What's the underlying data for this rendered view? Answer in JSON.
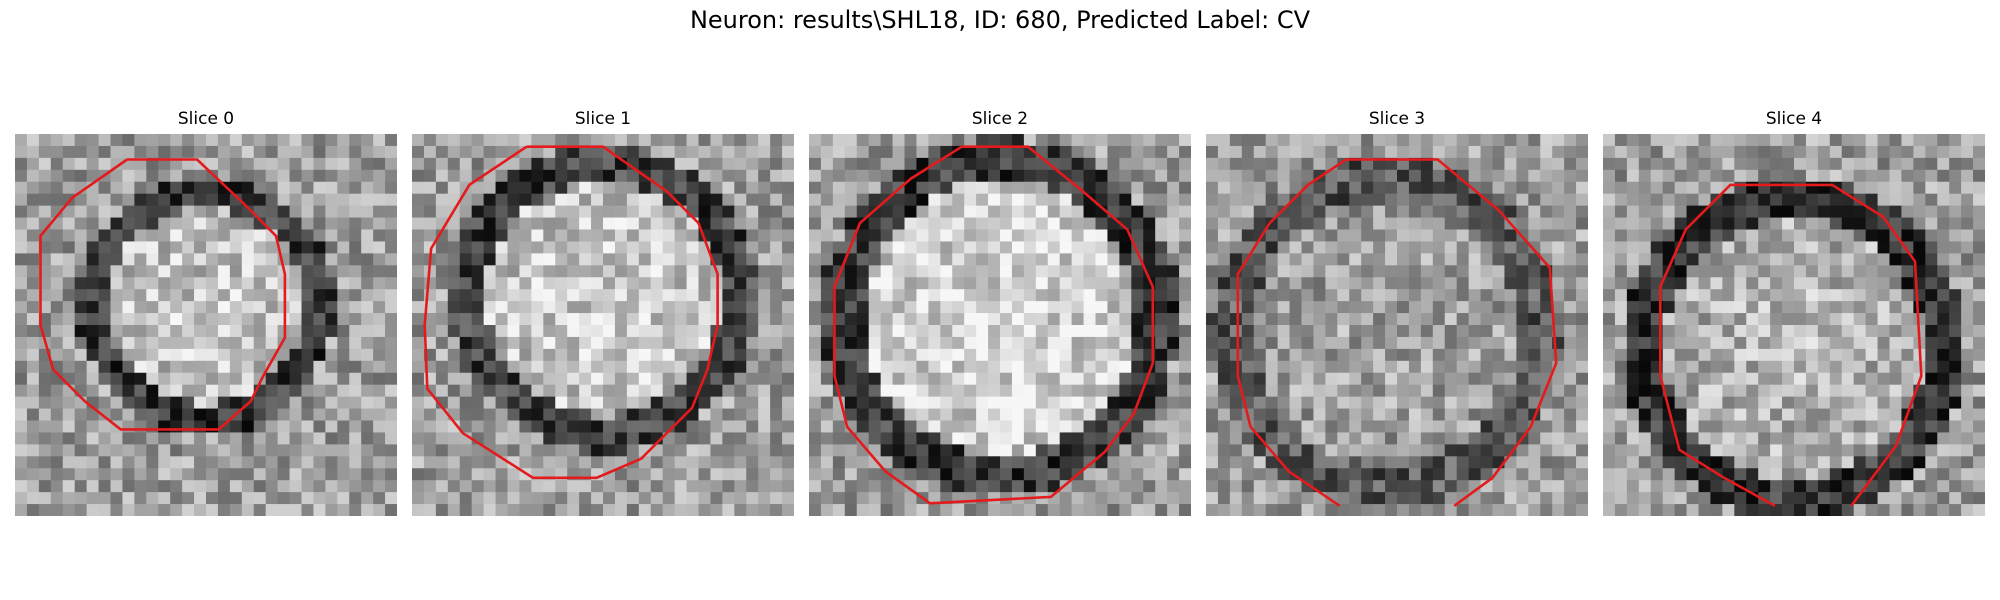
{
  "figure": {
    "title": "Neuron: results\\SHL18, ID: 680, Predicted Label: CV"
  },
  "slices": [
    {
      "label": "Slice 0"
    },
    {
      "label": "Slice 1"
    },
    {
      "label": "Slice 2"
    },
    {
      "label": "Slice 3"
    },
    {
      "label": "Slice 4"
    }
  ],
  "colors": {
    "contour": "#e41a1c",
    "background": "#ffffff"
  }
}
